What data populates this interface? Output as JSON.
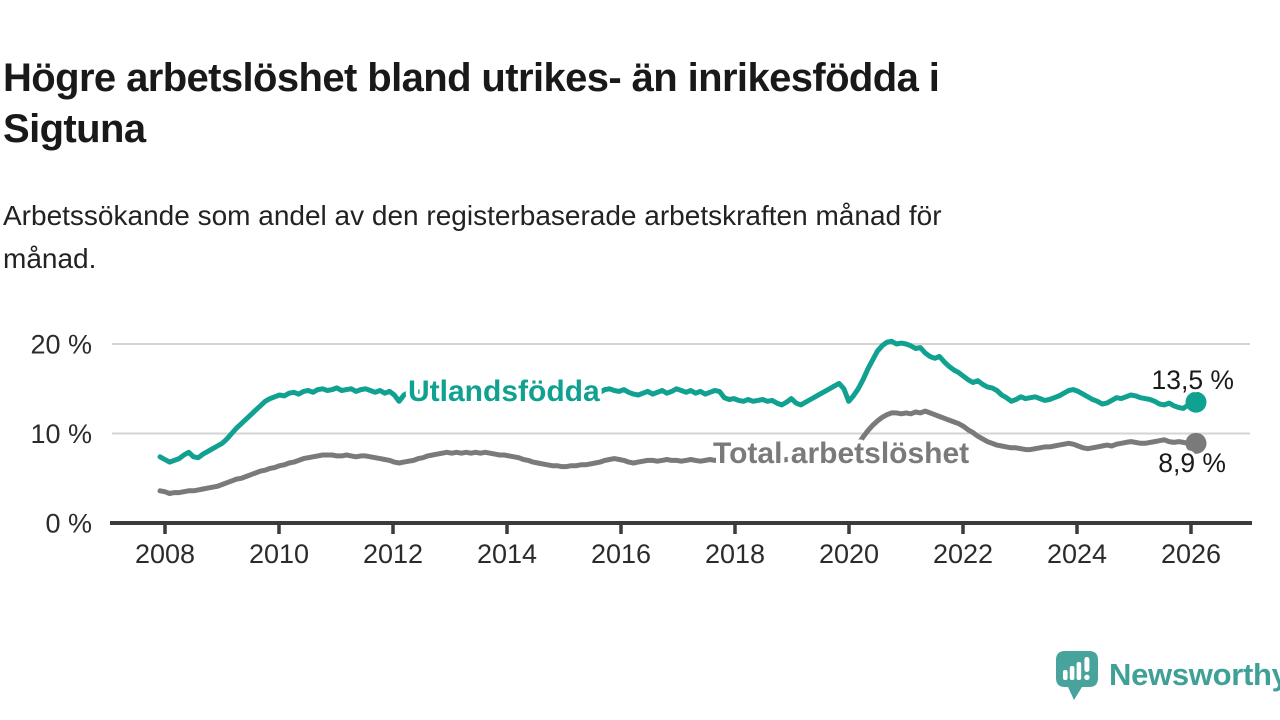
{
  "header": {
    "title_lines": [
      "Högre arbetslöshet bland utrikes- än inrikesfödda i",
      "Sigtuna"
    ],
    "subtitle_lines": [
      "Arbetssökande som andel av den registerbaserade arbetskraften månad för",
      "månad."
    ]
  },
  "footer": {
    "brand": "Newsworthy",
    "logo_icon": "speech-bubble-bar-chart-icon"
  },
  "colors": {
    "foreign_born_line": "#10a191",
    "total_line": "#7a7a7a",
    "axis": "#3b3b3b",
    "grid": "#d4d4d4",
    "tick_text": "#2b2b2b",
    "value_text": "#1a1a1a",
    "brand_teal": "#3fa098"
  },
  "chart_data": {
    "type": "line",
    "title": "Högre arbetslöshet bland utrikes- än inrikesfödda i Sigtuna",
    "subtitle": "Arbetssökande som andel av den registerbaserade arbetskraften månad för månad.",
    "x_unit": "month",
    "x_range": [
      "2008-01",
      "2026-01"
    ],
    "x_tick_years": [
      2008,
      2010,
      2012,
      2014,
      2016,
      2018,
      2020,
      2022,
      2024,
      2026
    ],
    "y_ticks": [
      {
        "value": 0,
        "label": "0 %"
      },
      {
        "value": 10,
        "label": "10 %"
      },
      {
        "value": 20,
        "label": "20 %"
      }
    ],
    "ylim": [
      0,
      21.5
    ],
    "grid": "horizontal",
    "legend_position": "inline-labels",
    "series": [
      {
        "name": "Utlandsfödda",
        "color": "#10a191",
        "end_value": 13.5,
        "end_value_label": "13,5 %",
        "values": [
          7.4,
          7.1,
          6.8,
          7.0,
          7.2,
          7.6,
          7.9,
          7.4,
          7.3,
          7.7,
          8.0,
          8.3,
          8.6,
          8.9,
          9.4,
          10.0,
          10.6,
          11.1,
          11.6,
          12.1,
          12.6,
          13.1,
          13.6,
          13.9,
          14.1,
          14.3,
          14.2,
          14.5,
          14.6,
          14.4,
          14.7,
          14.8,
          14.6,
          14.9,
          15.0,
          14.8,
          14.9,
          15.1,
          14.8,
          14.9,
          15.0,
          14.7,
          14.9,
          15.0,
          14.8,
          14.6,
          14.8,
          14.5,
          14.7,
          14.3,
          13.6,
          14.3,
          14.6,
          14.4,
          14.6,
          14.8,
          14.5,
          14.7,
          14.4,
          14.6,
          14.5,
          14.7,
          14.9,
          14.6,
          14.8,
          14.5,
          14.7,
          14.4,
          14.6,
          14.8,
          14.5,
          14.7,
          14.6,
          14.4,
          14.7,
          14.5,
          14.3,
          14.6,
          14.4,
          14.7,
          14.5,
          14.3,
          14.6,
          14.4,
          14.5,
          14.3,
          14.6,
          14.4,
          14.2,
          14.5,
          14.7,
          14.4,
          14.6,
          14.9,
          15.0,
          14.8,
          14.7,
          14.9,
          14.6,
          14.4,
          14.3,
          14.5,
          14.7,
          14.4,
          14.6,
          14.8,
          14.5,
          14.7,
          15.0,
          14.8,
          14.6,
          14.8,
          14.5,
          14.7,
          14.4,
          14.6,
          14.8,
          14.7,
          14.0,
          13.8,
          13.9,
          13.7,
          13.6,
          13.8,
          13.6,
          13.7,
          13.8,
          13.6,
          13.7,
          13.4,
          13.2,
          13.5,
          13.9,
          13.4,
          13.2,
          13.5,
          13.8,
          14.1,
          14.4,
          14.7,
          15.0,
          15.3,
          15.6,
          15.0,
          13.6,
          14.2,
          15.0,
          16.0,
          17.2,
          18.2,
          19.2,
          19.8,
          20.2,
          20.3,
          20.0,
          20.1,
          20.0,
          19.8,
          19.5,
          19.6,
          19.0,
          18.6,
          18.4,
          18.6,
          18.0,
          17.5,
          17.1,
          16.8,
          16.4,
          16.0,
          15.7,
          15.9,
          15.5,
          15.2,
          15.1,
          14.8,
          14.3,
          14.0,
          13.6,
          13.8,
          14.1,
          13.9,
          14.0,
          14.1,
          13.9,
          13.7,
          13.8,
          14.0,
          14.2,
          14.5,
          14.8,
          14.9,
          14.7,
          14.4,
          14.1,
          13.8,
          13.6,
          13.3,
          13.4,
          13.7,
          14.0,
          13.9,
          14.1,
          14.3,
          14.2,
          14.0,
          13.9,
          13.8,
          13.6,
          13.3,
          13.2,
          13.4,
          13.1,
          12.9,
          12.8,
          13.2,
          13.5
        ]
      },
      {
        "name": "Total arbetslöshet",
        "color": "#7a7a7a",
        "end_value": 8.9,
        "end_value_label": "8,9 %",
        "values": [
          3.6,
          3.5,
          3.3,
          3.4,
          3.4,
          3.5,
          3.6,
          3.6,
          3.7,
          3.8,
          3.9,
          4.0,
          4.1,
          4.3,
          4.5,
          4.7,
          4.9,
          5.0,
          5.2,
          5.4,
          5.6,
          5.8,
          5.9,
          6.1,
          6.2,
          6.4,
          6.5,
          6.7,
          6.8,
          7.0,
          7.2,
          7.3,
          7.4,
          7.5,
          7.6,
          7.6,
          7.6,
          7.5,
          7.5,
          7.6,
          7.5,
          7.4,
          7.5,
          7.5,
          7.4,
          7.3,
          7.2,
          7.1,
          7.0,
          6.8,
          6.7,
          6.8,
          6.9,
          7.0,
          7.2,
          7.3,
          7.5,
          7.6,
          7.7,
          7.8,
          7.9,
          7.8,
          7.9,
          7.8,
          7.9,
          7.8,
          7.9,
          7.8,
          7.9,
          7.8,
          7.7,
          7.6,
          7.6,
          7.5,
          7.4,
          7.3,
          7.1,
          7.0,
          6.8,
          6.7,
          6.6,
          6.5,
          6.4,
          6.4,
          6.3,
          6.3,
          6.4,
          6.4,
          6.5,
          6.5,
          6.6,
          6.7,
          6.8,
          7.0,
          7.1,
          7.2,
          7.1,
          7.0,
          6.8,
          6.7,
          6.8,
          6.9,
          7.0,
          7.0,
          6.9,
          7.0,
          7.1,
          7.0,
          7.0,
          6.9,
          7.0,
          7.1,
          7.0,
          6.9,
          7.0,
          7.1,
          7.0,
          7.1,
          7.0,
          7.1,
          7.0,
          6.9,
          6.8,
          6.9,
          6.8,
          6.9,
          7.0,
          6.9,
          7.0,
          7.1,
          7.0,
          7.1,
          7.2,
          7.1,
          7.2,
          7.3,
          7.4,
          7.5,
          7.6,
          7.7,
          7.8,
          7.9,
          8.0,
          8.0,
          8.1,
          8.2,
          8.8,
          9.6,
          10.3,
          10.9,
          11.4,
          11.8,
          12.1,
          12.3,
          12.3,
          12.2,
          12.3,
          12.2,
          12.4,
          12.3,
          12.5,
          12.3,
          12.1,
          11.9,
          11.7,
          11.5,
          11.3,
          11.1,
          10.8,
          10.4,
          10.1,
          9.7,
          9.4,
          9.1,
          8.9,
          8.7,
          8.6,
          8.5,
          8.4,
          8.4,
          8.3,
          8.2,
          8.2,
          8.3,
          8.4,
          8.5,
          8.5,
          8.6,
          8.7,
          8.8,
          8.9,
          8.8,
          8.6,
          8.4,
          8.3,
          8.4,
          8.5,
          8.6,
          8.7,
          8.6,
          8.8,
          8.9,
          9.0,
          9.1,
          9.0,
          8.9,
          8.9,
          9.0,
          9.1,
          9.2,
          9.3,
          9.1,
          9.0,
          9.1,
          9.0,
          8.9,
          8.9
        ]
      }
    ]
  }
}
